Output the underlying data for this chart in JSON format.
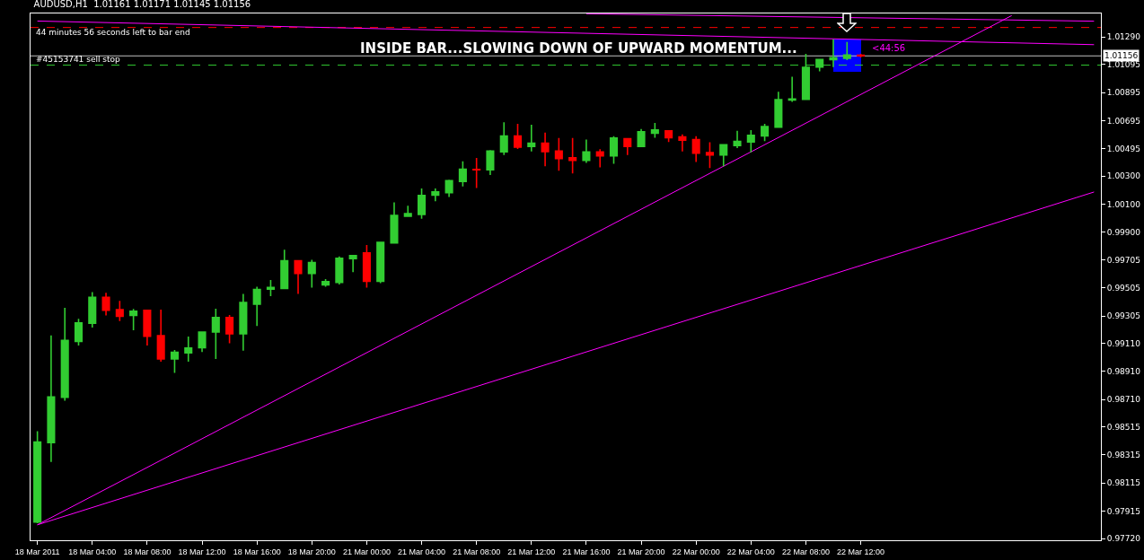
{
  "chart_data": {
    "type": "candlestick",
    "title": "AUDUSD,H1  1.01161 1.01171 1.01145 1.01156",
    "annotations": [
      "44 minutes 56 seconds left to bar end",
      "INSIDE BAR...SLOWING DOWN OF UPWARD MOMENTUM...",
      {
        "text": "<44:56",
        "x": "22 Mar 12:00",
        "y": 1.01156
      }
    ],
    "categories": [
      "18 Mar 2011",
      null,
      null,
      null,
      "18 Mar 04:00",
      null,
      null,
      null,
      "18 Mar 08:00",
      null,
      null,
      null,
      "18 Mar 12:00",
      null,
      null,
      null,
      "18 Mar 16:00",
      null,
      null,
      null,
      "18 Mar 20:00",
      null,
      null,
      null,
      "21 Mar 00:00",
      null,
      null,
      null,
      "21 Mar 04:00",
      null,
      null,
      null,
      "21 Mar 08:00",
      null,
      null,
      null,
      "21 Mar 12:00",
      null,
      null,
      null,
      "21 Mar 16:00",
      null,
      null,
      null,
      "21 Mar 20:00",
      null,
      null,
      null,
      "22 Mar 00:00",
      null,
      null,
      null,
      "22 Mar 04:00",
      null,
      null,
      null,
      "22 Mar 08:00",
      null,
      null,
      null,
      "22 Mar 12:00",
      null,
      null,
      null,
      null,
      null,
      null,
      null,
      null,
      null,
      null,
      null,
      null,
      null,
      null,
      null,
      null,
      null
    ],
    "series": [
      {
        "type": "line",
        "color": "#ff00ff",
        "values": [
          0.97818,
          null,
          null,
          null,
          null,
          null,
          null,
          null,
          null,
          null,
          null,
          null,
          null,
          null,
          null,
          null,
          null,
          null,
          null,
          null,
          null,
          null,
          null,
          null,
          null,
          null,
          null,
          null,
          null,
          null,
          null,
          null,
          null,
          null,
          null,
          null,
          null,
          null,
          null,
          null,
          null,
          null,
          null,
          null,
          null,
          null,
          null,
          null,
          null,
          null,
          null,
          null,
          null,
          null,
          null,
          null,
          null,
          null,
          null,
          null,
          null,
          null,
          null,
          null,
          null,
          null,
          null,
          null,
          null,
          null,
          null,
          1.01443,
          null,
          null,
          null,
          null,
          null,
          null
        ]
      },
      {
        "type": "line",
        "color": "#ff00ff",
        "values": [
          0.97818,
          null,
          null,
          null,
          null,
          null,
          null,
          null,
          null,
          null,
          null,
          null,
          null,
          null,
          null,
          null,
          null,
          null,
          null,
          null,
          null,
          null,
          null,
          null,
          null,
          null,
          null,
          null,
          null,
          null,
          null,
          null,
          null,
          null,
          null,
          null,
          null,
          null,
          null,
          null,
          null,
          null,
          null,
          null,
          null,
          null,
          null,
          null,
          null,
          null,
          null,
          null,
          null,
          null,
          null,
          null,
          null,
          null,
          null,
          null,
          null,
          null,
          null,
          null,
          null,
          null,
          null,
          null,
          null,
          null,
          null,
          null,
          null,
          null,
          null,
          null,
          null,
          1.00187
        ]
      },
      {
        "type": "line",
        "color": "#ff00ff",
        "values": [
          1.01404,
          null,
          null,
          null,
          null,
          null,
          null,
          null,
          null,
          null,
          null,
          null,
          null,
          null,
          null,
          null,
          null,
          null,
          null,
          null,
          null,
          null,
          null,
          null,
          null,
          null,
          null,
          null,
          null,
          null,
          null,
          null,
          null,
          null,
          null,
          null,
          null,
          null,
          null,
          null,
          null,
          null,
          null,
          null,
          null,
          null,
          null,
          null,
          null,
          null,
          null,
          null,
          null,
          null,
          null,
          null,
          null,
          null,
          null,
          null,
          null,
          null,
          null,
          null,
          null,
          null,
          null,
          null,
          null,
          null,
          null,
          null,
          null,
          null,
          null,
          null,
          null,
          1.01236
        ]
      },
      {
        "type": "line",
        "color": "#ff00ff",
        "values": [
          null,
          null,
          null,
          null,
          null,
          null,
          null,
          null,
          null,
          null,
          null,
          null,
          null,
          null,
          null,
          null,
          null,
          null,
          null,
          null,
          null,
          null,
          null,
          null,
          null,
          null,
          null,
          null,
          null,
          null,
          null,
          null,
          null,
          null,
          null,
          null,
          null,
          null,
          null,
          null,
          1.01456,
          null,
          null,
          null,
          null,
          null,
          null,
          null,
          null,
          null,
          null,
          null,
          null,
          null,
          null,
          null,
          null,
          null,
          null,
          null,
          null,
          null,
          null,
          null,
          null,
          null,
          null,
          null,
          null,
          null,
          null,
          null,
          null,
          null,
          null,
          null,
          null,
          1.01403
        ]
      },
      {
        "ohlc": [
          [
            0.97837,
            0.98484,
            0.9783,
            0.98407
          ],
          [
            0.98403,
            0.99166,
            0.98266,
            0.98728
          ],
          [
            0.98726,
            0.99363,
            0.98701,
            0.99131
          ],
          [
            0.99123,
            0.99284,
            0.99094,
            0.99255
          ],
          [
            0.99253,
            0.99474,
            0.99222,
            0.99437
          ],
          [
            0.99437,
            0.9947,
            0.99309,
            0.99346
          ],
          [
            0.9935,
            0.99412,
            0.99268,
            0.99303
          ],
          [
            0.99309,
            0.99355,
            0.99203,
            0.99338
          ],
          [
            0.99344,
            0.9935,
            0.99094,
            0.9916
          ],
          [
            0.99164,
            0.9935,
            0.9898,
            0.98999
          ],
          [
            0.98999,
            0.99063,
            0.98899,
            0.99046
          ],
          [
            0.99042,
            0.99158,
            0.9898,
            0.99077
          ],
          [
            0.99079,
            0.99193,
            0.99048,
            0.99189
          ],
          [
            0.99191,
            0.99356,
            0.98999,
            0.99294
          ],
          [
            0.99294,
            0.99311,
            0.9911,
            0.99178
          ],
          [
            0.99178,
            0.99462,
            0.99057,
            0.994
          ],
          [
            0.99389,
            0.99512,
            0.99234,
            0.99493
          ],
          [
            0.99495,
            0.99561,
            0.99445,
            0.99507
          ],
          [
            0.99501,
            0.99776,
            0.99499,
            0.99698
          ],
          [
            0.99698,
            0.99698,
            0.99462,
            0.99607
          ],
          [
            0.99607,
            0.99704,
            0.99507,
            0.99685
          ],
          [
            0.99526,
            0.99567,
            0.99513,
            0.99549
          ],
          [
            0.99544,
            0.99729,
            0.99528,
            0.99716
          ],
          [
            0.99712,
            0.99735,
            0.99617,
            0.99735
          ],
          [
            0.99754,
            0.99809,
            0.99507,
            0.99551
          ],
          [
            0.99551,
            0.99828,
            0.99538,
            0.99828
          ],
          [
            0.99824,
            1.00113,
            0.99824,
            1.0002
          ],
          [
            1.00014,
            1.00089,
            1.0001,
            1.00033
          ],
          [
            1.00028,
            1.00213,
            0.99997,
            1.00163
          ],
          [
            1.00165,
            1.00213,
            1.00121,
            1.00188
          ],
          [
            1.00183,
            1.00275,
            1.00152,
            1.00268
          ],
          [
            1.00262,
            1.00405,
            1.00227,
            1.00349
          ],
          [
            1.00347,
            1.0043,
            1.00215,
            1.00345
          ],
          [
            1.00345,
            1.00486,
            1.00308,
            1.00479
          ],
          [
            1.00473,
            1.00684,
            1.0045,
            1.00585
          ],
          [
            1.00585,
            1.00672,
            1.00494,
            1.00506
          ],
          [
            1.00512,
            1.00666,
            1.00475,
            1.00535
          ],
          [
            1.00535,
            1.0061,
            1.0037,
            1.00475
          ],
          [
            1.00479,
            1.00572,
            1.00339,
            1.00425
          ],
          [
            1.0043,
            1.00572,
            1.0032,
            1.00413
          ],
          [
            1.00413,
            1.0056,
            1.00394,
            1.00473
          ],
          [
            1.00473,
            1.00492,
            1.00363,
            1.00444
          ],
          [
            1.00444,
            1.00585,
            1.00388,
            1.00572
          ],
          [
            1.00566,
            1.00572,
            1.0045,
            1.00512
          ],
          [
            1.00512,
            1.00635,
            1.00506,
            1.00616
          ],
          [
            1.00605,
            1.00678,
            1.00574,
            1.00628
          ],
          [
            1.00622,
            1.00628,
            1.00543,
            1.00574
          ],
          [
            1.00579,
            1.00597,
            1.00475,
            1.00556
          ],
          [
            1.0056,
            1.00585,
            1.00401,
            1.00463
          ],
          [
            1.00467,
            1.00541,
            1.00357,
            1.0045
          ],
          [
            1.0045,
            1.00529,
            1.0037,
            1.00523
          ],
          [
            1.00518,
            1.00622,
            1.005,
            1.00548
          ],
          [
            1.00543,
            1.00628,
            1.00469,
            1.00591
          ],
          [
            1.00587,
            1.00672,
            1.0055,
            1.00653
          ],
          [
            1.00649,
            1.00901,
            1.00643,
            1.00845
          ],
          [
            1.00842,
            1.01007,
            1.00829,
            1.00849
          ],
          [
            1.00847,
            1.0117,
            1.00841,
            1.01075
          ],
          [
            1.01077,
            1.01131,
            1.01046,
            1.01131
          ],
          [
            1.01129,
            1.01274,
            1.01077,
            1.01143
          ],
          [
            1.01139,
            1.01255,
            1.01126,
            1.01162
          ],
          [
            1.01161,
            1.01171,
            1.01145,
            1.01156
          ],
          null,
          null,
          null,
          null,
          null,
          null,
          null,
          null,
          null,
          null,
          null,
          null,
          null,
          null,
          null,
          null,
          null
        ],
        "colors": [
          "#32cd32",
          "#32cd32",
          "#32cd32",
          "#32cd32",
          "#32cd32",
          "#ff0000",
          "#ff0000",
          "#32cd32",
          "#ff0000",
          "#ff0000",
          "#32cd32",
          "#32cd32",
          "#32cd32",
          "#32cd32",
          "#ff0000",
          "#32cd32",
          "#32cd32",
          "#32cd32",
          "#32cd32",
          "#ff0000",
          "#32cd32",
          "#32cd32",
          "#32cd32",
          "#32cd32",
          "#ff0000",
          "#32cd32",
          "#32cd32",
          "#32cd32",
          "#32cd32",
          "#32cd32",
          "#32cd32",
          "#32cd32",
          "#ff0000",
          "#32cd32",
          "#32cd32",
          "#ff0000",
          "#32cd32",
          "#ff0000",
          "#ff0000",
          "#ff0000",
          "#32cd32",
          "#ff0000",
          "#32cd32",
          "#ff0000",
          "#32cd32",
          "#32cd32",
          "#ff0000",
          "#ff0000",
          "#ff0000",
          "#ff0000",
          "#32cd32",
          "#32cd32",
          "#32cd32",
          "#32cd32",
          "#32cd32",
          "#32cd32",
          "#32cd32",
          "#32cd32",
          "#32cd32",
          "#32cd32",
          "#ff0000",
          null,
          null,
          null,
          null,
          null,
          null,
          null,
          null,
          null,
          null,
          null,
          null,
          null,
          null,
          null,
          null,
          null
        ]
      }
    ],
    "ref_lines": [
      {
        "axis": "y",
        "value": 1.01358,
        "color": "#ff0000",
        "line_style": "dashed"
      },
      {
        "axis": "y",
        "value": 1.0109,
        "label": "#45153741 sell stop",
        "color": "#32cd32",
        "line_style": "dashed"
      },
      {
        "axis": "y",
        "value": 1.01156,
        "label": "1.01156",
        "color": "#c0c0c0",
        "line_style": "solid"
      }
    ],
    "ylim": [
      0.97708,
      1.01458
    ],
    "yticks": [
      {
        "value": 1.0129,
        "label": "1.01290"
      },
      {
        "value": 1.01095,
        "label": "1.01095"
      },
      {
        "value": 1.00895,
        "label": "1.00895"
      },
      {
        "value": 1.00695,
        "label": "1.00695"
      },
      {
        "value": 1.00495,
        "label": "1.00495"
      },
      {
        "value": 1.003,
        "label": "1.00300"
      },
      {
        "value": 1.001,
        "label": "1.00100"
      },
      {
        "value": 0.999,
        "label": "0.99900"
      },
      {
        "value": 0.99705,
        "label": "0.99705"
      },
      {
        "value": 0.99505,
        "label": "0.99505"
      },
      {
        "value": 0.99305,
        "label": "0.99305"
      },
      {
        "value": 0.9911,
        "label": "0.99110"
      },
      {
        "value": 0.9891,
        "label": "0.98910"
      },
      {
        "value": 0.9871,
        "label": "0.98710"
      },
      {
        "value": 0.98515,
        "label": "0.98515"
      },
      {
        "value": 0.98315,
        "label": "0.98315"
      },
      {
        "value": 0.98115,
        "label": "0.98115"
      },
      {
        "value": 0.97915,
        "label": "0.97915"
      },
      {
        "value": 0.9772,
        "label": "0.97720"
      }
    ],
    "grid": false
  }
}
